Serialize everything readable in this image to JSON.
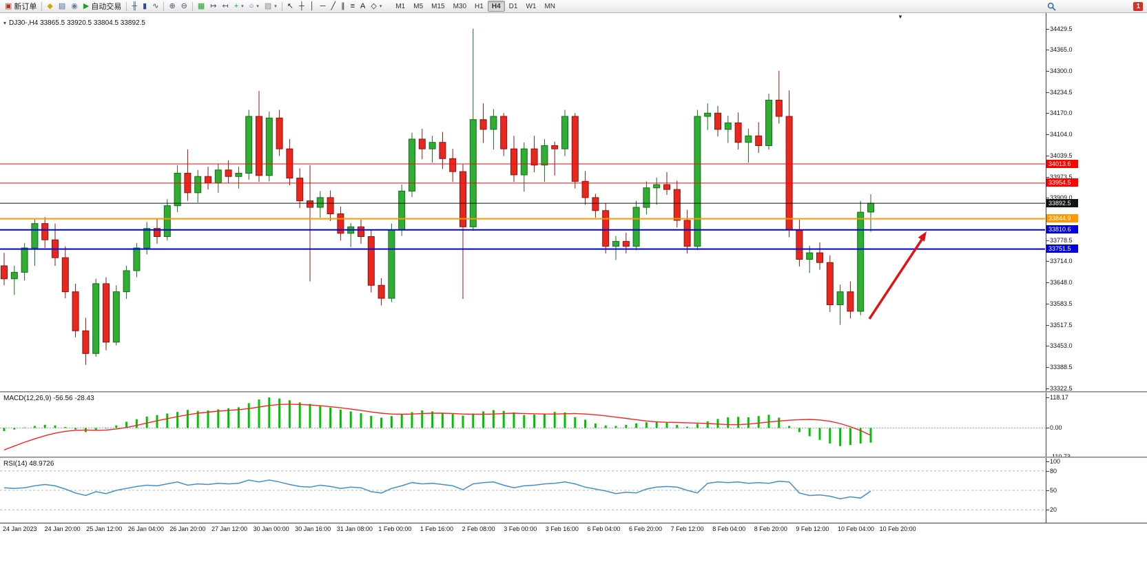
{
  "toolbar": {
    "notification_count": "1",
    "active_timeframe": "H4",
    "timeframes": [
      "M1",
      "M5",
      "M15",
      "M30",
      "H1",
      "H4",
      "D1",
      "W1",
      "MN"
    ],
    "items": [
      {
        "name": "new-order-button",
        "glyph": "▣",
        "color": "#b1332b",
        "label": "新订单"
      },
      {
        "type": "sep"
      },
      {
        "name": "metaeditor-button",
        "glyph": "◆",
        "color": "#d9a118"
      },
      {
        "name": "terminal-button",
        "glyph": "▤",
        "color": "#46699c"
      },
      {
        "name": "news-button",
        "glyph": "◉",
        "color": "#6b7f93"
      },
      {
        "name": "autotrading-button",
        "glyph": "▶",
        "color": "#1f9d2f",
        "label": "自动交易"
      },
      {
        "type": "sep"
      },
      {
        "name": "bar-chart-button",
        "glyph": "╫",
        "color": "#2f4d7d"
      },
      {
        "name": "candlestick-chart-button",
        "glyph": "▮",
        "color": "#2f4d7d"
      },
      {
        "name": "line-chart-button",
        "glyph": "∿",
        "color": "#2f4d7d"
      },
      {
        "type": "sep"
      },
      {
        "name": "zoom-in-button",
        "glyph": "⊕",
        "color": "#44546a"
      },
      {
        "name": "zoom-out-button",
        "glyph": "⊖",
        "color": "#44546a"
      },
      {
        "type": "sep"
      },
      {
        "name": "tile-windows-button",
        "glyph": "▦",
        "color": "#1f9d2f"
      },
      {
        "name": "auto-scroll-button",
        "glyph": "↦",
        "color": "#44546a"
      },
      {
        "name": "chart-shift-button",
        "glyph": "↤",
        "color": "#44546a"
      },
      {
        "name": "indicators-button",
        "glyph": "+",
        "color": "#1f9d2f",
        "caret": true
      },
      {
        "name": "periods-button",
        "glyph": "○",
        "color": "#2e66c9",
        "caret": true
      },
      {
        "name": "templates-button",
        "glyph": "▨",
        "color": "#8a8a8a",
        "caret": true
      },
      {
        "type": "sep"
      },
      {
        "name": "cursor-button",
        "glyph": "↖",
        "color": "#222222"
      },
      {
        "name": "crosshair-button",
        "glyph": "┼",
        "color": "#222222"
      },
      {
        "name": "vertical-line-button",
        "glyph": "│",
        "color": "#222222"
      },
      {
        "name": "horizontal-line-button",
        "glyph": "─",
        "color": "#222222"
      },
      {
        "name": "trendline-button",
        "glyph": "╱",
        "color": "#222222"
      },
      {
        "name": "channel-button",
        "glyph": "∥",
        "color": "#222222"
      },
      {
        "name": "fibonacci-button",
        "glyph": "≡",
        "color": "#222222"
      },
      {
        "name": "text-button",
        "glyph": "A",
        "color": "#222222"
      },
      {
        "name": "arrows-button",
        "glyph": "◇",
        "color": "#222222",
        "caret": true
      }
    ]
  },
  "chart": {
    "title": "DJ30-,H4 33865.5 33920.5 33804.5 33892.5",
    "price_axis": [
      "34429.5",
      "34365.0",
      "34300.0",
      "34234.5",
      "34170.0",
      "34104.0",
      "34039.5",
      "33973.5",
      "33909.0",
      "33844.0",
      "33778.5",
      "33714.0",
      "33648.0",
      "33583.5",
      "33517.5",
      "33453.0",
      "33388.5",
      "33322.5"
    ],
    "hlines": [
      {
        "label": "34013.6",
        "price": 34013.6,
        "color": "#ff0000",
        "width": 1
      },
      {
        "label": "33954.5",
        "price": 33954.5,
        "color": "#ff0000",
        "width": 1
      },
      {
        "label": "33892.5",
        "price": 33892.5,
        "color": "#111111",
        "width": 1
      },
      {
        "label": "33844.9",
        "price": 33844.9,
        "color": "#ff9900",
        "width": 2
      },
      {
        "label": "33810.6",
        "price": 33810.6,
        "color": "#0000dd",
        "width": 2
      },
      {
        "label": "33751.5",
        "price": 33751.5,
        "color": "#0000dd",
        "width": 2
      }
    ]
  },
  "macd": {
    "label": "MACD(12,26,9) -56.56 -28.43",
    "axis_labels": [
      "118.17",
      "0.00",
      "-110.73"
    ]
  },
  "rsi": {
    "label": "RSI(14) 48.9726",
    "axis_labels": [
      "100",
      "80",
      "50",
      "20"
    ]
  },
  "time_axis": [
    "24 Jan 2023",
    "24 Jan 20:00",
    "25 Jan 12:00",
    "26 Jan 04:00",
    "26 Jan 20:00",
    "27 Jan 12:00",
    "30 Jan 00:00",
    "30 Jan 16:00",
    "31 Jan 08:00",
    "1 Feb 00:00",
    "1 Feb 16:00",
    "2 Feb 08:00",
    "3 Feb 00:00",
    "3 Feb 16:00",
    "6 Feb 04:00",
    "6 Feb 20:00",
    "7 Feb 12:00",
    "8 Feb 04:00",
    "8 Feb 20:00",
    "9 Feb 12:00",
    "10 Feb 04:00",
    "10 Feb 20:00"
  ],
  "colors": {
    "bull": "#2fae33",
    "bull_dark": "#156c19",
    "bear": "#e8271f",
    "bear_dark": "#8f130e",
    "macd_hist": "#00c300",
    "macd_signal": "#ff2020",
    "rsi_line": "#3f8fd2",
    "arrow": "#e01212"
  },
  "chart_data": {
    "type": "candlestick",
    "symbol": "DJ30-",
    "timeframe": "H4",
    "last_ohlc": {
      "open": 33865.5,
      "high": 33920.5,
      "low": 33804.5,
      "close": 33892.5
    },
    "price_range": [
      33314,
      34478
    ],
    "macd_range": [
      -110.73,
      137
    ],
    "rsi_range": [
      0,
      100
    ],
    "ohlc": [
      [
        33700,
        33740,
        33640,
        33660
      ],
      [
        33660,
        33700,
        33610,
        33680
      ],
      [
        33680,
        33770,
        33655,
        33755
      ],
      [
        33755,
        33845,
        33700,
        33830
      ],
      [
        33830,
        33850,
        33755,
        33780
      ],
      [
        33780,
        33830,
        33700,
        33725
      ],
      [
        33725,
        33760,
        33600,
        33620
      ],
      [
        33620,
        33645,
        33480,
        33500
      ],
      [
        33500,
        33540,
        33395,
        33430
      ],
      [
        33430,
        33660,
        33420,
        33645
      ],
      [
        33645,
        33665,
        33440,
        33465
      ],
      [
        33465,
        33640,
        33455,
        33620
      ],
      [
        33620,
        33700,
        33598,
        33685
      ],
      [
        33685,
        33770,
        33665,
        33755
      ],
      [
        33755,
        33835,
        33735,
        33815
      ],
      [
        33815,
        33845,
        33768,
        33790
      ],
      [
        33790,
        33905,
        33778,
        33885
      ],
      [
        33885,
        34010,
        33865,
        33985
      ],
      [
        33985,
        34058,
        33900,
        33925
      ],
      [
        33925,
        33995,
        33895,
        33975
      ],
      [
        33975,
        34005,
        33935,
        33955
      ],
      [
        33955,
        34015,
        33925,
        33995
      ],
      [
        33995,
        34025,
        33955,
        33975
      ],
      [
        33975,
        34005,
        33938,
        33985
      ],
      [
        33985,
        34180,
        33965,
        34160
      ],
      [
        34160,
        34238,
        33958,
        33978
      ],
      [
        33978,
        34175,
        33960,
        34155
      ],
      [
        34155,
        34180,
        34038,
        34060
      ],
      [
        34060,
        34090,
        33948,
        33970
      ],
      [
        33970,
        34000,
        33878,
        33900
      ],
      [
        33900,
        34010,
        33652,
        33880
      ],
      [
        33880,
        33930,
        33848,
        33910
      ],
      [
        33910,
        33932,
        33838,
        33860
      ],
      [
        33860,
        33882,
        33778,
        33800
      ],
      [
        33800,
        33832,
        33758,
        33820
      ],
      [
        33820,
        33842,
        33768,
        33790
      ],
      [
        33790,
        33812,
        33618,
        33640
      ],
      [
        33640,
        33662,
        33578,
        33600
      ],
      [
        33600,
        33830,
        33588,
        33810
      ],
      [
        33810,
        33950,
        33792,
        33930
      ],
      [
        33930,
        34110,
        33912,
        34090
      ],
      [
        34090,
        34122,
        34028,
        34060
      ],
      [
        34060,
        34100,
        34018,
        34080
      ],
      [
        34080,
        34112,
        33998,
        34030
      ],
      [
        34030,
        34060,
        33958,
        33990
      ],
      [
        33990,
        34012,
        33598,
        33820
      ],
      [
        33820,
        34430,
        33808,
        34150
      ],
      [
        34150,
        34200,
        34078,
        34120
      ],
      [
        34120,
        34182,
        34058,
        34160
      ],
      [
        34160,
        34170,
        34038,
        34060
      ],
      [
        34060,
        34100,
        33958,
        33980
      ],
      [
        33980,
        34080,
        33928,
        34060
      ],
      [
        34060,
        34100,
        33988,
        34010
      ],
      [
        34010,
        34090,
        33958,
        34070
      ],
      [
        34070,
        34082,
        33978,
        34060
      ],
      [
        34060,
        34180,
        34038,
        34160
      ],
      [
        34160,
        34170,
        33938,
        33960
      ],
      [
        33960,
        33992,
        33888,
        33910
      ],
      [
        33910,
        33922,
        33848,
        33870
      ],
      [
        33870,
        33892,
        33738,
        33760
      ],
      [
        33760,
        33792,
        33718,
        33775
      ],
      [
        33775,
        33802,
        33738,
        33760
      ],
      [
        33760,
        33900,
        33748,
        33880
      ],
      [
        33880,
        33960,
        33858,
        33940
      ],
      [
        33940,
        33972,
        33888,
        33950
      ],
      [
        33950,
        33988,
        33918,
        33935
      ],
      [
        33935,
        33962,
        33818,
        33840
      ],
      [
        33840,
        33872,
        33738,
        33760
      ],
      [
        33760,
        34180,
        33748,
        34160
      ],
      [
        34160,
        34200,
        34118,
        34170
      ],
      [
        34170,
        34192,
        34098,
        34120
      ],
      [
        34120,
        34162,
        34078,
        34140
      ],
      [
        34140,
        34172,
        34058,
        34080
      ],
      [
        34080,
        34122,
        34018,
        34100
      ],
      [
        34100,
        34142,
        34048,
        34070
      ],
      [
        34070,
        34230,
        34058,
        34210
      ],
      [
        34210,
        34300,
        34138,
        34160
      ],
      [
        34160,
        34240,
        33788,
        33810
      ],
      [
        33810,
        33842,
        33698,
        33720
      ],
      [
        33720,
        33762,
        33678,
        33740
      ],
      [
        33740,
        33772,
        33688,
        33710
      ],
      [
        33710,
        33732,
        33558,
        33580
      ],
      [
        33580,
        33642,
        33518,
        33620
      ],
      [
        33620,
        33652,
        33538,
        33560
      ],
      [
        33560,
        33900,
        33548,
        33865
      ],
      [
        33865.5,
        33920.5,
        33804.5,
        33892.5
      ]
    ],
    "macd_hist": [
      -12,
      -6,
      2,
      8,
      12,
      10,
      4,
      -6,
      -16,
      -10,
      -2,
      10,
      24,
      34,
      44,
      50,
      56,
      62,
      70,
      66,
      68,
      72,
      76,
      80,
      96,
      110,
      118,
      114,
      107,
      99,
      93,
      87,
      79,
      71,
      64,
      57,
      47,
      40,
      46,
      53,
      61,
      68,
      64,
      59,
      54,
      48,
      56,
      64,
      69,
      66,
      60,
      50,
      52,
      56,
      62,
      60,
      42,
      32,
      17,
      10,
      8,
      12,
      18,
      22,
      24,
      20,
      12,
      5,
      16,
      26,
      35,
      41,
      43,
      41,
      46,
      51,
      40,
      8,
      -16,
      -32,
      -46,
      -60,
      -70,
      -66,
      -60,
      -56.56
    ],
    "macd_signal": [
      -85,
      -70,
      -55,
      -42,
      -30,
      -20,
      -13,
      -9,
      -8,
      -9,
      -8,
      -4,
      2,
      10,
      19,
      28,
      36,
      44,
      51,
      57,
      61,
      65,
      68,
      71,
      75,
      81,
      87,
      91,
      92,
      91,
      89,
      86,
      82,
      78,
      73,
      68,
      62,
      57,
      54,
      53,
      54,
      56,
      57,
      57,
      56,
      54,
      53,
      53,
      54,
      56,
      57,
      56,
      55,
      54,
      54,
      55,
      56,
      54,
      51,
      47,
      42,
      37,
      32,
      27,
      24,
      22,
      21,
      20,
      19,
      17,
      15,
      13,
      13,
      15,
      19,
      23,
      27,
      30,
      32,
      33,
      31,
      26,
      17,
      5,
      -10,
      -28.43
    ],
    "rsi": [
      54,
      53,
      54,
      57,
      59,
      57,
      52,
      46,
      42,
      48,
      45,
      50,
      53,
      56,
      58,
      57,
      60,
      63,
      58,
      60,
      59,
      61,
      60,
      61,
      66,
      63,
      66,
      63,
      59,
      56,
      55,
      58,
      56,
      53,
      55,
      54,
      48,
      46,
      53,
      57,
      62,
      60,
      61,
      59,
      57,
      51,
      60,
      62,
      63,
      58,
      54,
      57,
      58,
      60,
      61,
      63,
      60,
      55,
      52,
      49,
      45,
      47,
      46,
      52,
      55,
      56,
      55,
      50,
      46,
      61,
      63,
      62,
      63,
      61,
      62,
      61,
      64,
      63,
      46,
      42,
      43,
      41,
      37,
      40,
      38,
      48.97
    ]
  }
}
